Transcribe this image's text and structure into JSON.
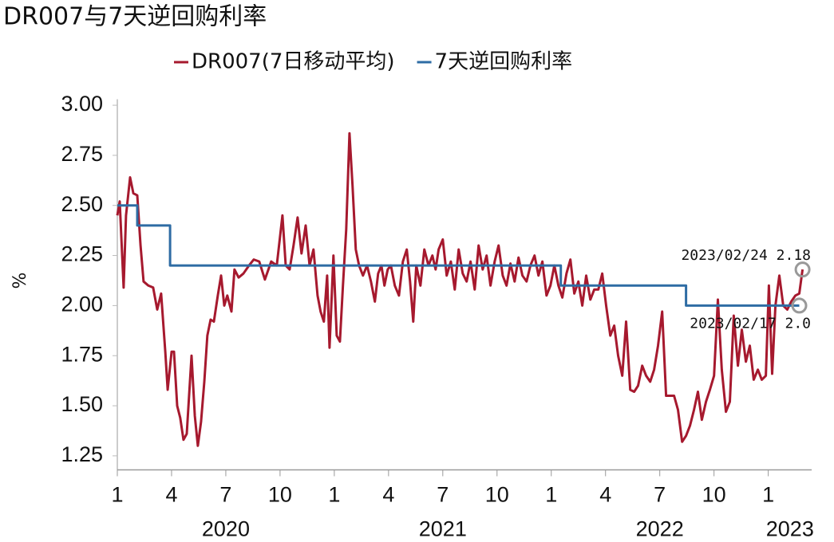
{
  "chart_data": {
    "type": "line",
    "title": "DR007与7天逆回购利率",
    "y_label": "%",
    "xlim": [
      2020.0,
      2023.2
    ],
    "ylim": [
      1.18,
      3.03
    ],
    "yticks": [
      {
        "value": 1.25,
        "label": "1.25"
      },
      {
        "value": 1.5,
        "label": "1.50"
      },
      {
        "value": 1.75,
        "label": "1.75"
      },
      {
        "value": 2.0,
        "label": "2.00"
      },
      {
        "value": 2.25,
        "label": "2.25"
      },
      {
        "value": 2.5,
        "label": "2.50"
      },
      {
        "value": 2.75,
        "label": "2.75"
      },
      {
        "value": 3.0,
        "label": "3.00"
      }
    ],
    "xticks": [
      {
        "value": 2020.0,
        "label": "1"
      },
      {
        "value": 2020.25,
        "label": "4"
      },
      {
        "value": 2020.5,
        "label": "7"
      },
      {
        "value": 2020.75,
        "label": "10"
      },
      {
        "value": 2021.0,
        "label": "1"
      },
      {
        "value": 2021.25,
        "label": "4"
      },
      {
        "value": 2021.5,
        "label": "7"
      },
      {
        "value": 2021.75,
        "label": "10"
      },
      {
        "value": 2022.0,
        "label": "1"
      },
      {
        "value": 2022.25,
        "label": "4"
      },
      {
        "value": 2022.5,
        "label": "7"
      },
      {
        "value": 2022.75,
        "label": "10"
      },
      {
        "value": 2023.0,
        "label": "1"
      }
    ],
    "year_labels": [
      {
        "value": 2020,
        "label": "2020"
      },
      {
        "value": 2021,
        "label": "2021"
      },
      {
        "value": 2022,
        "label": "2022"
      },
      {
        "value": 2023,
        "label": "2023"
      }
    ],
    "legend_position": "top",
    "grid": false,
    "series": [
      {
        "name": "DR007(7日移动平均)",
        "color": "#a6192e",
        "x": [
          2020.0,
          2020.011,
          2020.029,
          2020.04,
          2020.059,
          2020.074,
          2020.092,
          2020.107,
          2020.121,
          2020.143,
          2020.165,
          2020.184,
          2020.202,
          2020.221,
          2020.232,
          2020.25,
          2020.261,
          2020.276,
          2020.29,
          2020.305,
          2020.32,
          2020.342,
          2020.357,
          2020.371,
          2020.386,
          2020.401,
          2020.415,
          2020.43,
          2020.445,
          2020.463,
          2020.478,
          2020.493,
          2020.507,
          2020.526,
          2020.54,
          2020.559,
          2020.581,
          2020.607,
          2020.629,
          2020.654,
          2020.68,
          2020.709,
          2020.735,
          2020.761,
          2020.776,
          2020.794,
          2020.812,
          2020.831,
          2020.849,
          2020.868,
          2020.886,
          2020.904,
          2020.923,
          2020.937,
          2020.952,
          2020.967,
          2020.978,
          2020.996,
          2021.011,
          2021.026,
          2021.04,
          2021.055,
          2021.07,
          2021.084,
          2021.099,
          2021.114,
          2021.132,
          2021.151,
          2021.169,
          2021.187,
          2021.202,
          2021.217,
          2021.231,
          2021.246,
          2021.261,
          2021.279,
          2021.298,
          2021.316,
          2021.334,
          2021.349,
          2021.364,
          2021.378,
          2021.397,
          2021.415,
          2021.434,
          2021.452,
          2021.467,
          2021.481,
          2021.5,
          2021.518,
          2021.537,
          2021.555,
          2021.573,
          2021.592,
          2021.61,
          2021.628,
          2021.647,
          2021.665,
          2021.684,
          2021.702,
          2021.72,
          2021.739,
          2021.757,
          2021.776,
          2021.794,
          2021.812,
          2021.831,
          2021.849,
          2021.867,
          2021.886,
          2021.904,
          2021.923,
          2021.941,
          2021.959,
          2021.978,
          2021.996,
          2022.014,
          2022.033,
          2022.051,
          2022.07,
          2022.088,
          2022.106,
          2022.125,
          2022.143,
          2022.161,
          2022.18,
          2022.198,
          2022.217,
          2022.235,
          2022.253,
          2022.272,
          2022.29,
          2022.308,
          2022.327,
          2022.345,
          2022.364,
          2022.382,
          2022.4,
          2022.419,
          2022.437,
          2022.456,
          2022.474,
          2022.492,
          2022.511,
          2022.529,
          2022.547,
          2022.566,
          2022.584,
          2022.603,
          2022.621,
          2022.639,
          2022.658,
          2022.676,
          2022.694,
          2022.713,
          2022.731,
          2022.75,
          2022.768,
          2022.786,
          2022.805,
          2022.823,
          2022.841,
          2022.86,
          2022.878,
          2022.897,
          2022.915,
          2022.933,
          2022.952,
          2022.97,
          2022.989,
          2023.003,
          2023.018,
          2023.033,
          2023.051,
          2023.069,
          2023.088,
          2023.106,
          2023.125,
          2023.143,
          2023.158
        ],
        "values": [
          2.45,
          2.52,
          2.09,
          2.45,
          2.64,
          2.56,
          2.55,
          2.3,
          2.12,
          2.1,
          2.09,
          1.98,
          2.06,
          1.77,
          1.58,
          1.77,
          1.77,
          1.5,
          1.44,
          1.33,
          1.36,
          1.75,
          1.45,
          1.3,
          1.42,
          1.62,
          1.85,
          1.93,
          1.92,
          2.05,
          2.15,
          2.0,
          2.05,
          1.97,
          2.18,
          2.14,
          2.16,
          2.2,
          2.23,
          2.22,
          2.13,
          2.22,
          2.2,
          2.45,
          2.2,
          2.18,
          2.3,
          2.44,
          2.26,
          2.4,
          2.2,
          2.28,
          2.05,
          1.97,
          1.92,
          2.15,
          1.79,
          2.25,
          1.85,
          1.82,
          2.1,
          2.38,
          2.86,
          2.6,
          2.28,
          2.2,
          2.15,
          2.2,
          2.12,
          2.02,
          2.16,
          2.2,
          2.1,
          2.18,
          2.2,
          2.1,
          2.05,
          2.22,
          2.28,
          2.12,
          1.92,
          2.2,
          2.1,
          2.28,
          2.2,
          2.25,
          2.18,
          2.28,
          2.33,
          2.15,
          2.22,
          2.08,
          2.28,
          2.16,
          2.12,
          2.22,
          2.08,
          2.3,
          2.18,
          2.25,
          2.1,
          2.22,
          2.3,
          2.15,
          2.1,
          2.21,
          2.12,
          2.24,
          2.15,
          2.12,
          2.2,
          2.25,
          2.15,
          2.22,
          2.05,
          2.1,
          2.2,
          2.1,
          2.04,
          2.16,
          2.23,
          2.06,
          2.12,
          2.0,
          2.15,
          2.03,
          2.08,
          2.08,
          2.16,
          2.0,
          1.85,
          1.9,
          1.75,
          1.65,
          1.92,
          1.58,
          1.57,
          1.6,
          1.7,
          1.65,
          1.62,
          1.68,
          1.8,
          1.97,
          1.55,
          1.55,
          1.55,
          1.48,
          1.32,
          1.35,
          1.4,
          1.48,
          1.57,
          1.43,
          1.52,
          1.58,
          1.65,
          2.03,
          1.68,
          1.47,
          1.52,
          1.95,
          1.7,
          1.88,
          1.72,
          1.8,
          1.63,
          1.68,
          1.63,
          1.65,
          2.1,
          1.66,
          2.0,
          2.15,
          2.0,
          1.98,
          2.02,
          2.05,
          2.06,
          2.18
        ]
      },
      {
        "name": "7天逆回购利率",
        "color": "#2e6ca4",
        "x": [
          2020.0,
          2020.092,
          2020.092,
          2020.243,
          2020.243,
          2022.044,
          2022.044,
          2022.621,
          2022.621,
          2023.143
        ],
        "values": [
          2.5,
          2.5,
          2.4,
          2.4,
          2.2,
          2.2,
          2.1,
          2.1,
          2.0,
          2.0
        ]
      }
    ],
    "annotations": [
      {
        "label": "2023/02/24  2.18",
        "x": 2023.158,
        "y": 2.18
      },
      {
        "label": "2023/02/17  2.0",
        "x": 2023.143,
        "y": 2.0
      }
    ]
  }
}
